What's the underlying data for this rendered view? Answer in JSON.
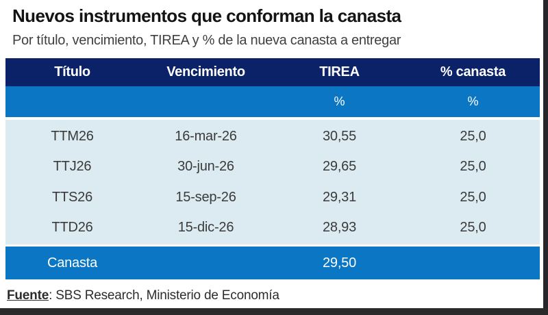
{
  "title": "Nuevos instrumentos que conforman la canasta",
  "subtitle": "Por título, vencimiento, TIREA y % de la nueva canasta a entregar",
  "colors": {
    "header_bg": "#0b2268",
    "accent_bg": "#0b76c4",
    "body_bg": "#dcebf1",
    "header_text": "#ffffff",
    "body_text": "#3a3a3a",
    "edge": "#2b2b2b"
  },
  "table": {
    "columns": [
      "Título",
      "Vencimiento",
      "TIREA",
      "% canasta"
    ],
    "units": [
      "",
      "",
      "%",
      "%"
    ],
    "rows": [
      {
        "titulo": "TTM26",
        "vencimiento": "16-mar-26",
        "tirea": "30,55",
        "canasta": "25,0"
      },
      {
        "titulo": "TTJ26",
        "vencimiento": "30-jun-26",
        "tirea": "29,65",
        "canasta": "25,0"
      },
      {
        "titulo": "TTS26",
        "vencimiento": "15-sep-26",
        "tirea": "29,31",
        "canasta": "25,0"
      },
      {
        "titulo": "TTD26",
        "vencimiento": "15-dic-26",
        "tirea": "28,93",
        "canasta": "25,0"
      }
    ],
    "summary": {
      "label": "Canasta",
      "vencimiento": "",
      "tirea": "29,50",
      "canasta": ""
    }
  },
  "footer": {
    "source_label": "Fuente",
    "source_rest": ": SBS Research, Ministerio de Economía"
  },
  "chart_data": {
    "type": "table",
    "title": "Nuevos instrumentos que conforman la canasta",
    "subtitle": "Por título, vencimiento, TIREA y % de la nueva canasta a entregar",
    "columns": [
      "Título",
      "Vencimiento",
      "TIREA %",
      "% canasta %"
    ],
    "rows": [
      [
        "TTM26",
        "16-mar-26",
        30.55,
        25.0
      ],
      [
        "TTJ26",
        "30-jun-26",
        29.65,
        25.0
      ],
      [
        "TTS26",
        "15-sep-26",
        29.31,
        25.0
      ],
      [
        "TTD26",
        "15-dic-26",
        28.93,
        25.0
      ],
      [
        "Canasta",
        "",
        29.5,
        ""
      ]
    ],
    "source": "SBS Research, Ministerio de Economía"
  }
}
